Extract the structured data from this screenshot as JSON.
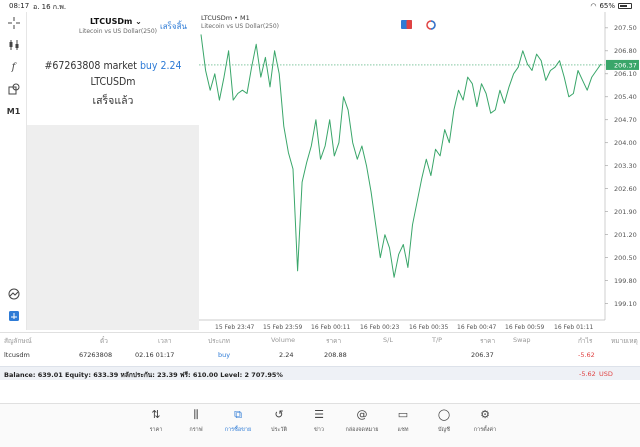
{
  "status": {
    "time": "08:17",
    "date": "อ. 16 ก.พ.",
    "battery": "65%",
    "battery_level": 0.65
  },
  "toolbar": {
    "timeframe": "M1"
  },
  "order_panel": {
    "symbol": "LTCUSDm",
    "description": "Litecoin vs US Dollar(250)",
    "done_label": "เสร็จสิ้น",
    "confirm_prefix": "#67263808 market",
    "confirm_action": "buy 2.24",
    "confirm_symbol": "LTCUSDm",
    "confirm_status": "เสร็จแล้ว"
  },
  "chart": {
    "title": "LTCUSDm • M1",
    "subtitle": "Litecoin vs US Dollar(250)",
    "current_price": "206.37"
  },
  "chart_data": {
    "type": "line",
    "y_ticks": [
      "207.50",
      "206.80",
      "206.10",
      "205.40",
      "204.70",
      "204.00",
      "203.30",
      "202.60",
      "201.90",
      "201.20",
      "200.50",
      "199.80",
      "199.10"
    ],
    "y_range": [
      198.6,
      207.8
    ],
    "x_ticks": [
      "15 Feb 23:47",
      "15 Feb 23:59",
      "16 Feb 00:11",
      "16 Feb 00:23",
      "16 Feb 00:35",
      "16 Feb 00:47",
      "16 Feb 00:59",
      "16 Feb 01:11"
    ],
    "series": [
      {
        "values": [
          207.3,
          206.2,
          205.6,
          206.1,
          205.3,
          206.0,
          206.8,
          205.3,
          205.5,
          205.6,
          205.5,
          206.3,
          207.0,
          206.0,
          206.6,
          205.7,
          206.8,
          206.1,
          204.5,
          203.7,
          203.2,
          200.1,
          202.8,
          203.4,
          203.9,
          204.7,
          203.5,
          203.9,
          204.7,
          203.6,
          204.0,
          205.4,
          205.0,
          204.0,
          203.5,
          203.9,
          203.3,
          202.5,
          201.5,
          200.5,
          201.2,
          200.8,
          199.9,
          200.6,
          200.9,
          200.2,
          201.5,
          202.2,
          202.9,
          203.5,
          203.0,
          203.8,
          203.6,
          204.4,
          204.0,
          205.0,
          205.6,
          205.3,
          206.0,
          205.8,
          205.1,
          205.8,
          205.5,
          204.9,
          205.0,
          205.6,
          205.2,
          205.7,
          206.1,
          206.3,
          206.8,
          206.4,
          206.2,
          206.7,
          206.5,
          205.9,
          206.2,
          206.3,
          206.5,
          206.0,
          205.4,
          205.5,
          206.2,
          205.9,
          205.6,
          206.0,
          206.2,
          206.4
        ]
      }
    ]
  },
  "table": {
    "headers": [
      "สัญลักษณ์",
      "ตั๋ว",
      "เวลา",
      "ประเภท",
      "Volume",
      "ราคา",
      "S/L",
      "T/P",
      "ราคา",
      "Swap",
      "กำไร",
      "หมายเหตุ"
    ],
    "row": {
      "symbol": "ltcusdm",
      "ticket": "67263808",
      "time": "02.16 01:17",
      "type": "buy",
      "volume": "2.24",
      "open_price": "208.88",
      "price": "206.37",
      "profit": "-5.62"
    },
    "balance": "Balance: 639.01 Equity: 633.39 หลักประกัน: 23.39 ฟรี: 610.00 Level: 2 707.95%",
    "total_profit": "-5.62",
    "currency": "USD"
  },
  "nav": [
    {
      "label": "ราคา",
      "icon": "arrows-updown-icon"
    },
    {
      "label": "กราฟ",
      "icon": "candles-icon"
    },
    {
      "label": "การซื้อขาย",
      "icon": "trade-chart-icon"
    },
    {
      "label": "ประวัติ",
      "icon": "history-icon"
    },
    {
      "label": "ข่าว",
      "icon": "news-icon"
    },
    {
      "label": "กล่องจดหมาย",
      "icon": "mail-at-icon"
    },
    {
      "label": "แชท",
      "icon": "chat-icon"
    },
    {
      "label": "บัญชี",
      "icon": "account-icon"
    },
    {
      "label": "การตั้งค่า",
      "icon": "gear-icon"
    }
  ]
}
